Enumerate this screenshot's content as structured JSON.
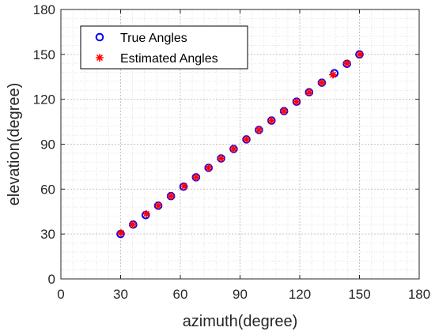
{
  "chart_data": {
    "type": "scatter",
    "title": "",
    "xlabel": "azimuth(degree)",
    "ylabel": "elevation(degree)",
    "xlim": [
      0,
      180
    ],
    "ylim": [
      0,
      180
    ],
    "xticks": [
      "0",
      "30",
      "60",
      "90",
      "120",
      "150",
      "180"
    ],
    "yticks": [
      "0",
      "30",
      "60",
      "90",
      "120",
      "150",
      "180"
    ],
    "grid": "on (major and minor, dotted)",
    "legend_position": "top-left",
    "series": [
      {
        "name": "True Angles",
        "marker": "circle",
        "color": "#0000ff",
        "x": [
          30,
          36.3,
          42.6,
          48.9,
          55.3,
          61.6,
          67.9,
          74.2,
          80.5,
          86.8,
          93.2,
          99.5,
          105.8,
          112.1,
          118.4,
          124.7,
          131.1,
          137.4,
          143.7,
          150
        ],
        "y": [
          30,
          36.3,
          42.6,
          48.9,
          55.3,
          61.6,
          67.9,
          74.2,
          80.5,
          86.8,
          93.2,
          99.5,
          105.8,
          112.1,
          118.4,
          124.7,
          131.1,
          137.4,
          143.7,
          150
        ]
      },
      {
        "name": "Estimated Angles",
        "marker": "asterisk",
        "color": "#ff0000",
        "x": [
          30.2,
          36.1,
          42.9,
          48.9,
          55.3,
          61.9,
          67.9,
          74.2,
          80.5,
          86.8,
          93.2,
          99.5,
          105.8,
          112.1,
          118.4,
          124.7,
          131.1,
          136.7,
          143.7,
          150.2
        ],
        "y": [
          30.6,
          36.4,
          43.4,
          48.9,
          55.3,
          61.9,
          67.9,
          74.2,
          80.5,
          86.8,
          93.2,
          99.5,
          105.8,
          112.1,
          118.4,
          124.7,
          131.1,
          136.4,
          143.9,
          150
        ]
      }
    ]
  }
}
